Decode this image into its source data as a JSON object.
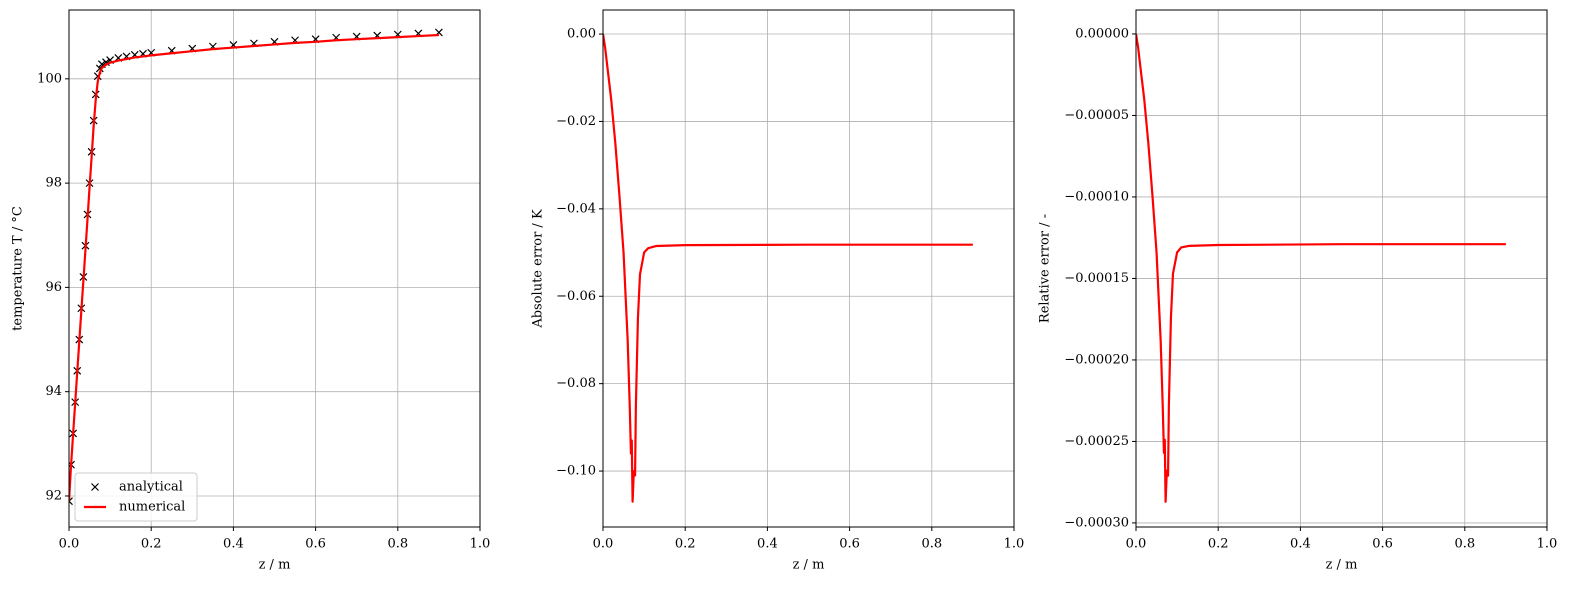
{
  "chart_data": [
    {
      "type": "line",
      "xlabel": "z / m",
      "ylabel": "temperature T / °C",
      "xlim": [
        0,
        1
      ],
      "xticks": [
        {
          "value": 0,
          "label": "0.0"
        },
        0.2,
        0.4,
        0.6,
        0.8,
        {
          "value": 1,
          "label": "1.0"
        }
      ],
      "ylim": [
        91.405,
        101.32
      ],
      "yticks": [
        92,
        94,
        96,
        98,
        100
      ],
      "grid": true,
      "legend": "lower left",
      "x": [
        0,
        0.005,
        0.01,
        0.015,
        0.02,
        0.025,
        0.03,
        0.035,
        0.04,
        0.045,
        0.05,
        0.055,
        0.06,
        0.065,
        0.07,
        0.075,
        0.08,
        0.09,
        0.1,
        0.12,
        0.14,
        0.16,
        0.18,
        0.2,
        0.25,
        0.3,
        0.35,
        0.4,
        0.45,
        0.5,
        0.55,
        0.6,
        0.65,
        0.7,
        0.75,
        0.8,
        0.85,
        0.9
      ],
      "series": [
        {
          "name": "analytical",
          "color": "#000000",
          "style": "marker",
          "values": [
            91.9,
            92.6,
            93.2,
            93.8,
            94.4,
            95.0,
            95.6,
            96.2,
            96.8,
            97.4,
            98.0,
            98.6,
            99.2,
            99.7,
            100.05,
            100.2,
            100.28,
            100.32,
            100.36,
            100.4,
            100.43,
            100.46,
            100.48,
            100.5,
            100.54,
            100.58,
            100.62,
            100.65,
            100.68,
            100.71,
            100.74,
            100.76,
            100.79,
            100.81,
            100.83,
            100.85,
            100.87,
            100.89
          ]
        },
        {
          "name": "numerical",
          "color": "#ff0000",
          "style": "line",
          "values": [
            91.9,
            92.59,
            93.19,
            93.78,
            94.37,
            94.96,
            95.55,
            96.13,
            96.72,
            97.31,
            97.92,
            98.5,
            99.1,
            99.6,
            99.95,
            100.12,
            100.21,
            100.27,
            100.31,
            100.35,
            100.38,
            100.41,
            100.43,
            100.45,
            100.49,
            100.53,
            100.57,
            100.6,
            100.63,
            100.66,
            100.69,
            100.71,
            100.74,
            100.76,
            100.78,
            100.8,
            100.82,
            100.84
          ]
        }
      ]
    },
    {
      "type": "line",
      "xlabel": "z / m",
      "ylabel": "Absolute error / K",
      "xlim": [
        0,
        1
      ],
      "xticks": [
        {
          "value": 0,
          "label": "0.0"
        },
        0.2,
        0.4,
        0.6,
        0.8,
        {
          "value": 1,
          "label": "1.0"
        }
      ],
      "ylim": [
        -0.1128,
        0.0055
      ],
      "yticks": [
        {
          "value": 0,
          "label": "0.00"
        },
        {
          "value": -0.02,
          "label": "−0.02"
        },
        {
          "value": -0.04,
          "label": "−0.04"
        },
        {
          "value": -0.06,
          "label": "−0.06"
        },
        {
          "value": -0.08,
          "label": "−0.08"
        },
        {
          "value": -0.1,
          "label": "−0.10"
        }
      ],
      "grid": true,
      "color": "#ff0000",
      "x": [
        0,
        0.005,
        0.01,
        0.02,
        0.03,
        0.04,
        0.05,
        0.06,
        0.065,
        0.068,
        0.07,
        0.072,
        0.075,
        0.078,
        0.08,
        0.085,
        0.09,
        0.1,
        0.11,
        0.13,
        0.2,
        0.5,
        0.9
      ],
      "values": [
        0,
        -0.003,
        -0.007,
        -0.015,
        -0.025,
        -0.037,
        -0.05,
        -0.07,
        -0.085,
        -0.096,
        -0.093,
        -0.107,
        -0.1,
        -0.101,
        -0.085,
        -0.065,
        -0.055,
        -0.05,
        -0.049,
        -0.0485,
        -0.0483,
        -0.0482,
        -0.0482
      ]
    },
    {
      "type": "line",
      "xlabel": "z / m",
      "ylabel": "Relative error / -",
      "xlim": [
        0,
        1
      ],
      "xticks": [
        {
          "value": 0,
          "label": "0.0"
        },
        0.2,
        0.4,
        0.6,
        0.8,
        {
          "value": 1,
          "label": "1.0"
        }
      ],
      "ylim": [
        -0.0003025,
        1.47e-05
      ],
      "yticks": [
        {
          "value": 0,
          "label": "0.00000"
        },
        {
          "value": -5e-05,
          "label": "−0.00005"
        },
        {
          "value": -0.0001,
          "label": "−0.00010"
        },
        {
          "value": -0.00015,
          "label": "−0.00015"
        },
        {
          "value": -0.0002,
          "label": "−0.00020"
        },
        {
          "value": -0.00025,
          "label": "−0.00025"
        },
        {
          "value": -0.0003,
          "label": "−0.00030"
        }
      ],
      "grid": true,
      "color": "#ff0000",
      "x": [
        0,
        0.005,
        0.01,
        0.02,
        0.03,
        0.04,
        0.05,
        0.06,
        0.065,
        0.068,
        0.07,
        0.072,
        0.075,
        0.078,
        0.08,
        0.085,
        0.09,
        0.1,
        0.11,
        0.13,
        0.2,
        0.5,
        0.9
      ],
      "values": [
        0,
        -8e-06,
        -1.88e-05,
        -4e-05,
        -6.7e-05,
        -9.9e-05,
        -0.000134,
        -0.000188,
        -0.000228,
        -0.000257,
        -0.000249,
        -0.000287,
        -0.000268,
        -0.000271,
        -0.000228,
        -0.000174,
        -0.000147,
        -0.000134,
        -0.000131,
        -0.00013,
        -0.0001295,
        -0.000129,
        -0.000129
      ]
    }
  ]
}
